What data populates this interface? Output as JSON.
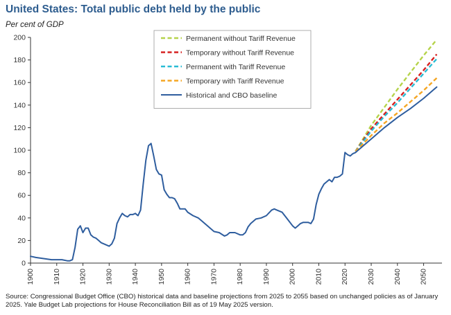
{
  "chart_data": {
    "type": "line",
    "title": "United States: Total public debt held by the public",
    "ylabel": "Per cent of GDP",
    "xlabel": "",
    "xlim": [
      1900,
      2057
    ],
    "ylim": [
      0,
      200
    ],
    "xticks": [
      1900,
      1910,
      1920,
      1930,
      1940,
      1950,
      1960,
      1970,
      1980,
      1990,
      2000,
      2010,
      2020,
      2030,
      2040,
      2050
    ],
    "yticks": [
      0,
      20,
      40,
      60,
      80,
      100,
      120,
      140,
      160,
      180,
      200
    ],
    "grid": false,
    "legend_position": "top-right",
    "source": "Source: Congressional Budget Office (CBO) historical data and baseline projections from 2025 to 2055 based on unchanged policies as of January 2025. Yale Budget Lab projections for House Reconciliation Bill as of 19 May 2025 version.",
    "series": [
      {
        "name": "Permanent without Tariff Revenue",
        "color": "#b5d34a",
        "dash": true,
        "x": [
          2024,
          2030,
          2035,
          2040,
          2045,
          2050,
          2055
        ],
        "y": [
          99,
          122,
          138,
          154,
          169,
          184,
          198
        ]
      },
      {
        "name": "Temporary without Tariff Revenue",
        "color": "#d62020",
        "dash": true,
        "x": [
          2024,
          2030,
          2035,
          2040,
          2045,
          2050,
          2055
        ],
        "y": [
          99,
          119,
          132,
          145,
          158,
          171,
          185
        ]
      },
      {
        "name": "Permanent with Tariff Revenue",
        "color": "#29bcd4",
        "dash": true,
        "x": [
          2024,
          2030,
          2035,
          2040,
          2045,
          2050,
          2055
        ],
        "y": [
          99,
          117,
          130,
          142,
          155,
          168,
          181
        ]
      },
      {
        "name": "Temporary with Tariff Revenue",
        "color": "#f5a623",
        "dash": true,
        "x": [
          2024,
          2030,
          2035,
          2040,
          2045,
          2050,
          2055
        ],
        "y": [
          99,
          113,
          124,
          133,
          143,
          153,
          164
        ]
      },
      {
        "name": "Historical and CBO baseline",
        "color": "#2e5d9e",
        "dash": false,
        "x": [
          1900,
          1902,
          1905,
          1908,
          1910,
          1912,
          1914,
          1915,
          1916,
          1917,
          1918,
          1919,
          1920,
          1921,
          1922,
          1923,
          1924,
          1925,
          1926,
          1927,
          1928,
          1929,
          1930,
          1931,
          1932,
          1933,
          1934,
          1935,
          1936,
          1937,
          1938,
          1939,
          1940,
          1941,
          1942,
          1943,
          1944,
          1945,
          1946,
          1947,
          1948,
          1949,
          1950,
          1951,
          1952,
          1953,
          1954,
          1955,
          1956,
          1957,
          1958,
          1959,
          1960,
          1962,
          1964,
          1966,
          1968,
          1970,
          1972,
          1974,
          1975,
          1976,
          1978,
          1980,
          1981,
          1982,
          1983,
          1984,
          1986,
          1988,
          1990,
          1992,
          1993,
          1994,
          1996,
          1998,
          2000,
          2001,
          2002,
          2003,
          2004,
          2006,
          2007,
          2008,
          2009,
          2010,
          2011,
          2012,
          2013,
          2014,
          2015,
          2016,
          2017,
          2018,
          2019,
          2020,
          2021,
          2022,
          2023,
          2024,
          2025,
          2030,
          2035,
          2040,
          2045,
          2050,
          2055
        ],
        "y": [
          6,
          5,
          4,
          3,
          3,
          3,
          2,
          2,
          3,
          14,
          30,
          33,
          27,
          31,
          31,
          25,
          23,
          22,
          20,
          18,
          17,
          16,
          15,
          17,
          22,
          35,
          40,
          44,
          42,
          41,
          43,
          43,
          44,
          42,
          47,
          70,
          91,
          104,
          106,
          95,
          83,
          79,
          78,
          65,
          61,
          58,
          58,
          57,
          53,
          48,
          48,
          48,
          45,
          42,
          40,
          36,
          32,
          28,
          27,
          24,
          25,
          27,
          27,
          25,
          25,
          27,
          32,
          35,
          39,
          40,
          42,
          47,
          48,
          47,
          45,
          39,
          33,
          31,
          33,
          35,
          36,
          36,
          35,
          39,
          52,
          61,
          66,
          70,
          72,
          74,
          72,
          76,
          76,
          77,
          79,
          98,
          96,
          95,
          97,
          98,
          100,
          110,
          120,
          129,
          137,
          146,
          156
        ]
      }
    ]
  }
}
